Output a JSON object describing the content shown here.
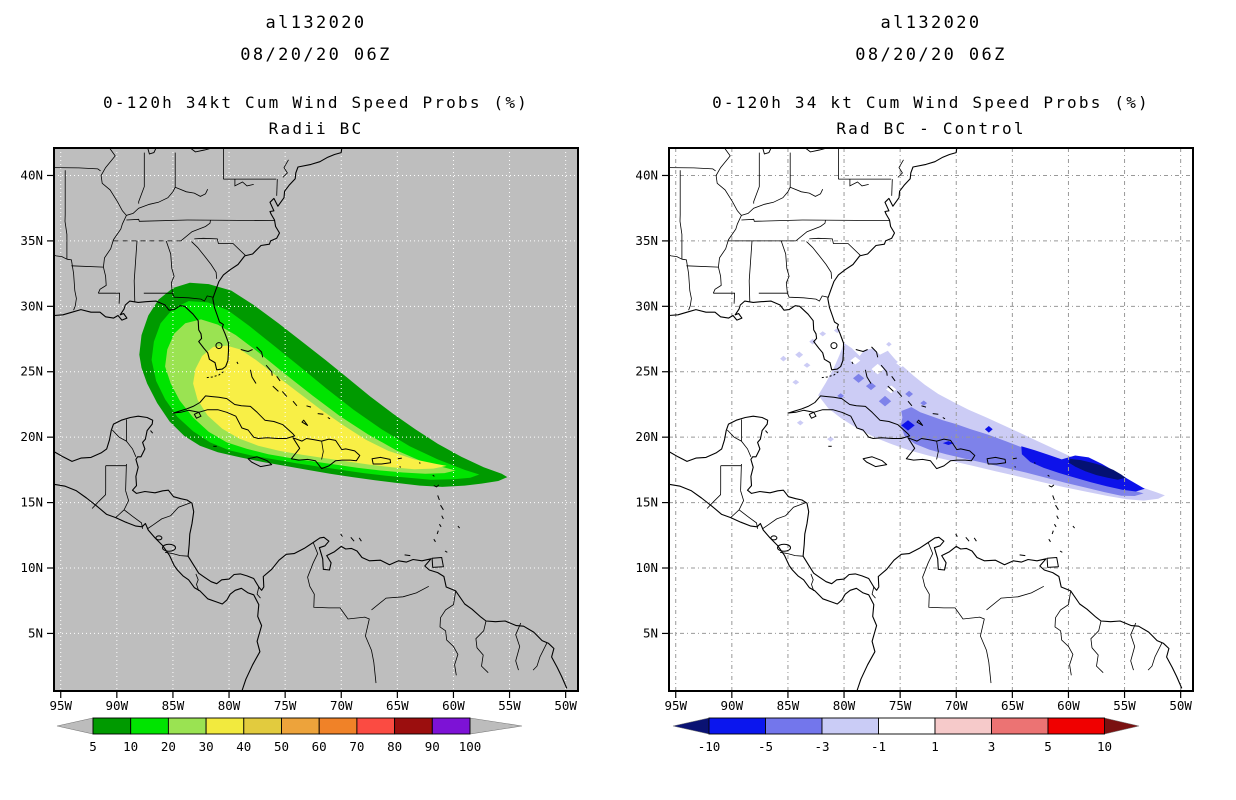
{
  "page": {
    "background": "#ffffff"
  },
  "panels": [
    {
      "id": "radii-bc",
      "title_lines": {
        "storm_id": "al132020",
        "datetime": "08/20/20 06Z",
        "product": "0-120h 34kt Cum Wind Speed Probs (%)",
        "subtitle": "Radii BC"
      },
      "map": {
        "background": "#bebebe",
        "gridline_color": "#ffffff",
        "border_color": "#000000",
        "lat_tick_labels": [
          "40N",
          "35N",
          "30N",
          "25N",
          "20N",
          "15N",
          "10N",
          "5N"
        ],
        "lon_tick_labels": [
          "95W",
          "90W",
          "85W",
          "80W",
          "75W",
          "70W",
          "65W",
          "60W",
          "55W",
          "50W"
        ]
      },
      "contour_levels": {
        "values": [
          5,
          10,
          20,
          30
        ],
        "fill_colors": [
          "#009a00",
          "#00e400",
          "#9ae352",
          "#f8ef46"
        ]
      },
      "colorbar": {
        "boundary_labels": [
          "5",
          "10",
          "20",
          "30",
          "40",
          "50",
          "60",
          "70",
          "80",
          "90",
          "100"
        ],
        "segment_colors": [
          "#009a00",
          "#00e400",
          "#9ae352",
          "#f2ea3e",
          "#e2cb3e",
          "#eda33b",
          "#f08228",
          "#fb4b42",
          "#9b0e0e",
          "#7d12d6"
        ],
        "left_arrow_color": "#bcbcbc",
        "right_arrow_color": "#bcbcbc"
      }
    },
    {
      "id": "rad-bc-minus-control",
      "title_lines": {
        "storm_id": "al132020",
        "datetime": "08/20/20 06Z",
        "product": "0-120h 34 kt Cum Wind Speed Probs (%)",
        "subtitle": "Rad BC - Control"
      },
      "map": {
        "background": "#ffffff",
        "gridline_color": "#999999",
        "border_color": "#000000",
        "lat_tick_labels": [
          "40N",
          "35N",
          "30N",
          "25N",
          "20N",
          "15N",
          "10N",
          "5N"
        ],
        "lon_tick_labels": [
          "95W",
          "90W",
          "85W",
          "80W",
          "75W",
          "70W",
          "65W",
          "60W",
          "55W",
          "50W"
        ]
      },
      "contour_levels": {
        "values": [
          -1,
          -3,
          -5,
          -10
        ],
        "fill_colors": [
          "#ccccf5",
          "#7e82ea",
          "#0d12ea",
          "#041173"
        ]
      },
      "colorbar": {
        "boundary_labels": [
          "-10",
          "-5",
          "-3",
          "-1",
          "1",
          "3",
          "5",
          "10"
        ],
        "segment_colors": [
          "#0b16ee",
          "#7376ec",
          "#caccf6",
          "#ffffff",
          "#f6caca",
          "#ec7373",
          "#f00000"
        ],
        "left_arrow_color": "#0a1273",
        "right_arrow_color": "#7a1111"
      }
    }
  ]
}
